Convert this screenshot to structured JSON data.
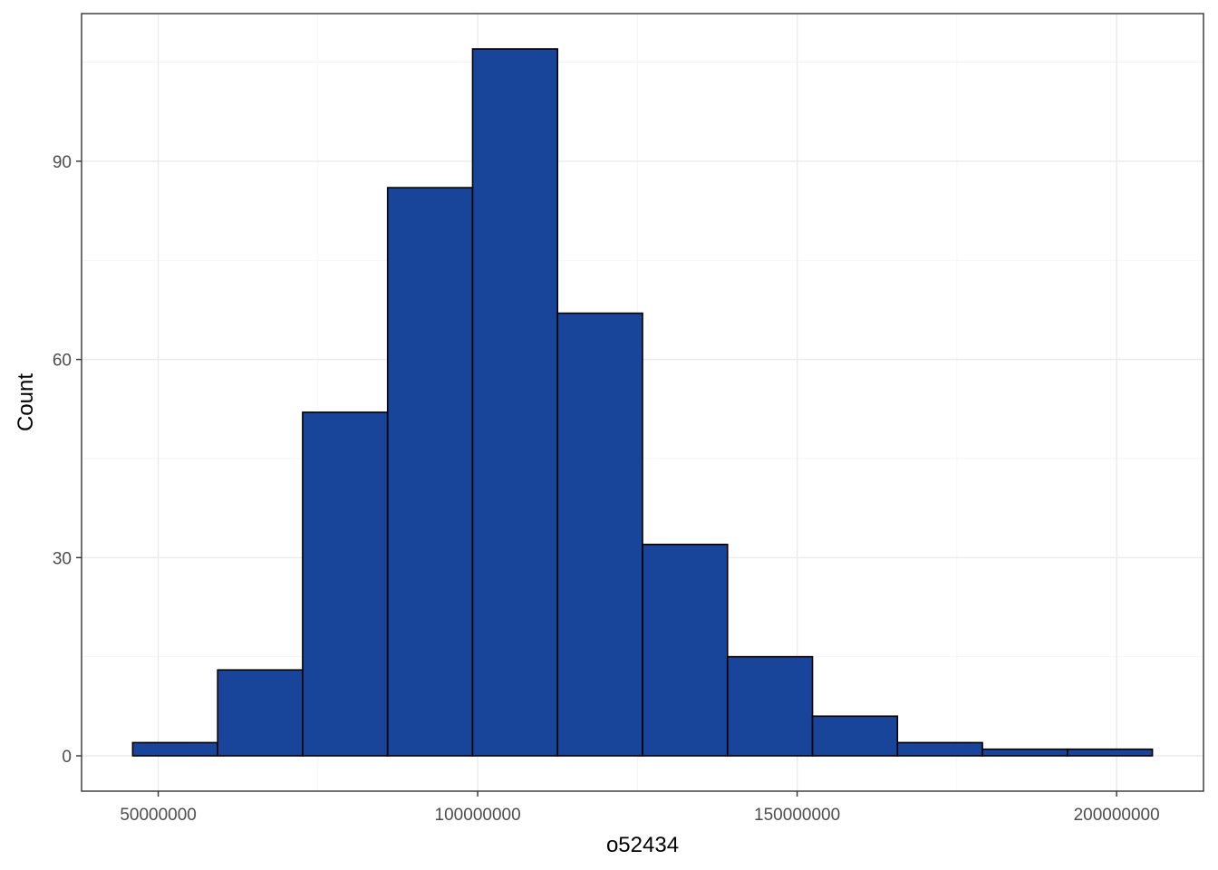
{
  "chart_data": {
    "type": "bar",
    "title": "",
    "xlabel": "o52434",
    "ylabel": "Count",
    "bin_edges": [
      46000000,
      59300000,
      72600000,
      85900000,
      99200000,
      112500000,
      125800000,
      139100000,
      152400000,
      165700000,
      179000000,
      192300000,
      205600000
    ],
    "values": [
      2,
      13,
      52,
      86,
      107,
      67,
      32,
      15,
      6,
      2,
      1,
      1
    ],
    "xlim": [
      38000000,
      213600000
    ],
    "ylim": [
      -5.35,
      112.35
    ],
    "x_ticks": [
      50000000,
      100000000,
      150000000,
      200000000
    ],
    "x_tick_labels": [
      "50000000",
      "100000000",
      "150000000",
      "200000000"
    ],
    "y_ticks": [
      0,
      30,
      60,
      90
    ],
    "y_tick_labels": [
      "0",
      "30",
      "60",
      "90"
    ],
    "grid": true,
    "colors": {
      "bar_fill": "#184499",
      "bar_border": "#000000",
      "grid": "#ebebeb",
      "panel_border": "#333333"
    }
  }
}
